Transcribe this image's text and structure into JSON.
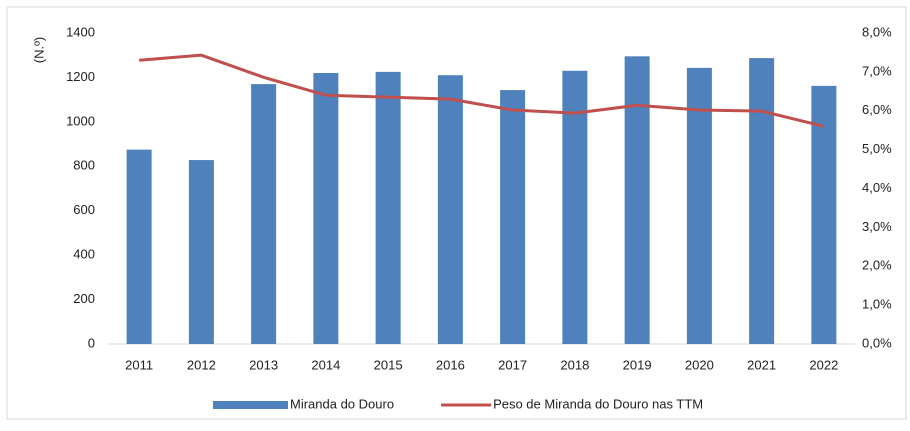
{
  "chart_data": {
    "type": "bar-line",
    "y_label": "(N.º)",
    "categories": [
      "2011",
      "2012",
      "2013",
      "2014",
      "2015",
      "2016",
      "2017",
      "2018",
      "2019",
      "2020",
      "2021",
      "2022"
    ],
    "series": [
      {
        "name": "Miranda do Douro",
        "color": "#4f81bd",
        "type": "bar",
        "values": [
          875,
          828,
          1170,
          1220,
          1225,
          1210,
          1143,
          1230,
          1295,
          1243,
          1287,
          1162
        ]
      },
      {
        "name": "Peso de Miranda do Douro nas TTM",
        "color": "#c0504d",
        "type": "line",
        "axis": "y2",
        "values": [
          7.3,
          7.43,
          6.86,
          6.4,
          6.35,
          6.3,
          6.02,
          5.94,
          6.14,
          6.02,
          5.99,
          5.6
        ]
      }
    ],
    "ylim": [
      0,
      1400
    ],
    "yticks": [
      0,
      200,
      400,
      600,
      800,
      1000,
      1200,
      1400
    ],
    "y2lim": [
      0,
      8
    ],
    "y2ticks": [
      {
        "value": 0,
        "label": "0,0%"
      },
      {
        "value": 1,
        "label": "1,0%"
      },
      {
        "value": 2,
        "label": "2,0%"
      },
      {
        "value": 3,
        "label": "3,0%"
      },
      {
        "value": 4,
        "label": "4,0%"
      },
      {
        "value": 5,
        "label": "5,0%"
      },
      {
        "value": 6,
        "label": "6,0%"
      },
      {
        "value": 7,
        "label": "7,0%"
      },
      {
        "value": 8,
        "label": "8,0%"
      }
    ],
    "grid": false,
    "legend": "bottom"
  }
}
